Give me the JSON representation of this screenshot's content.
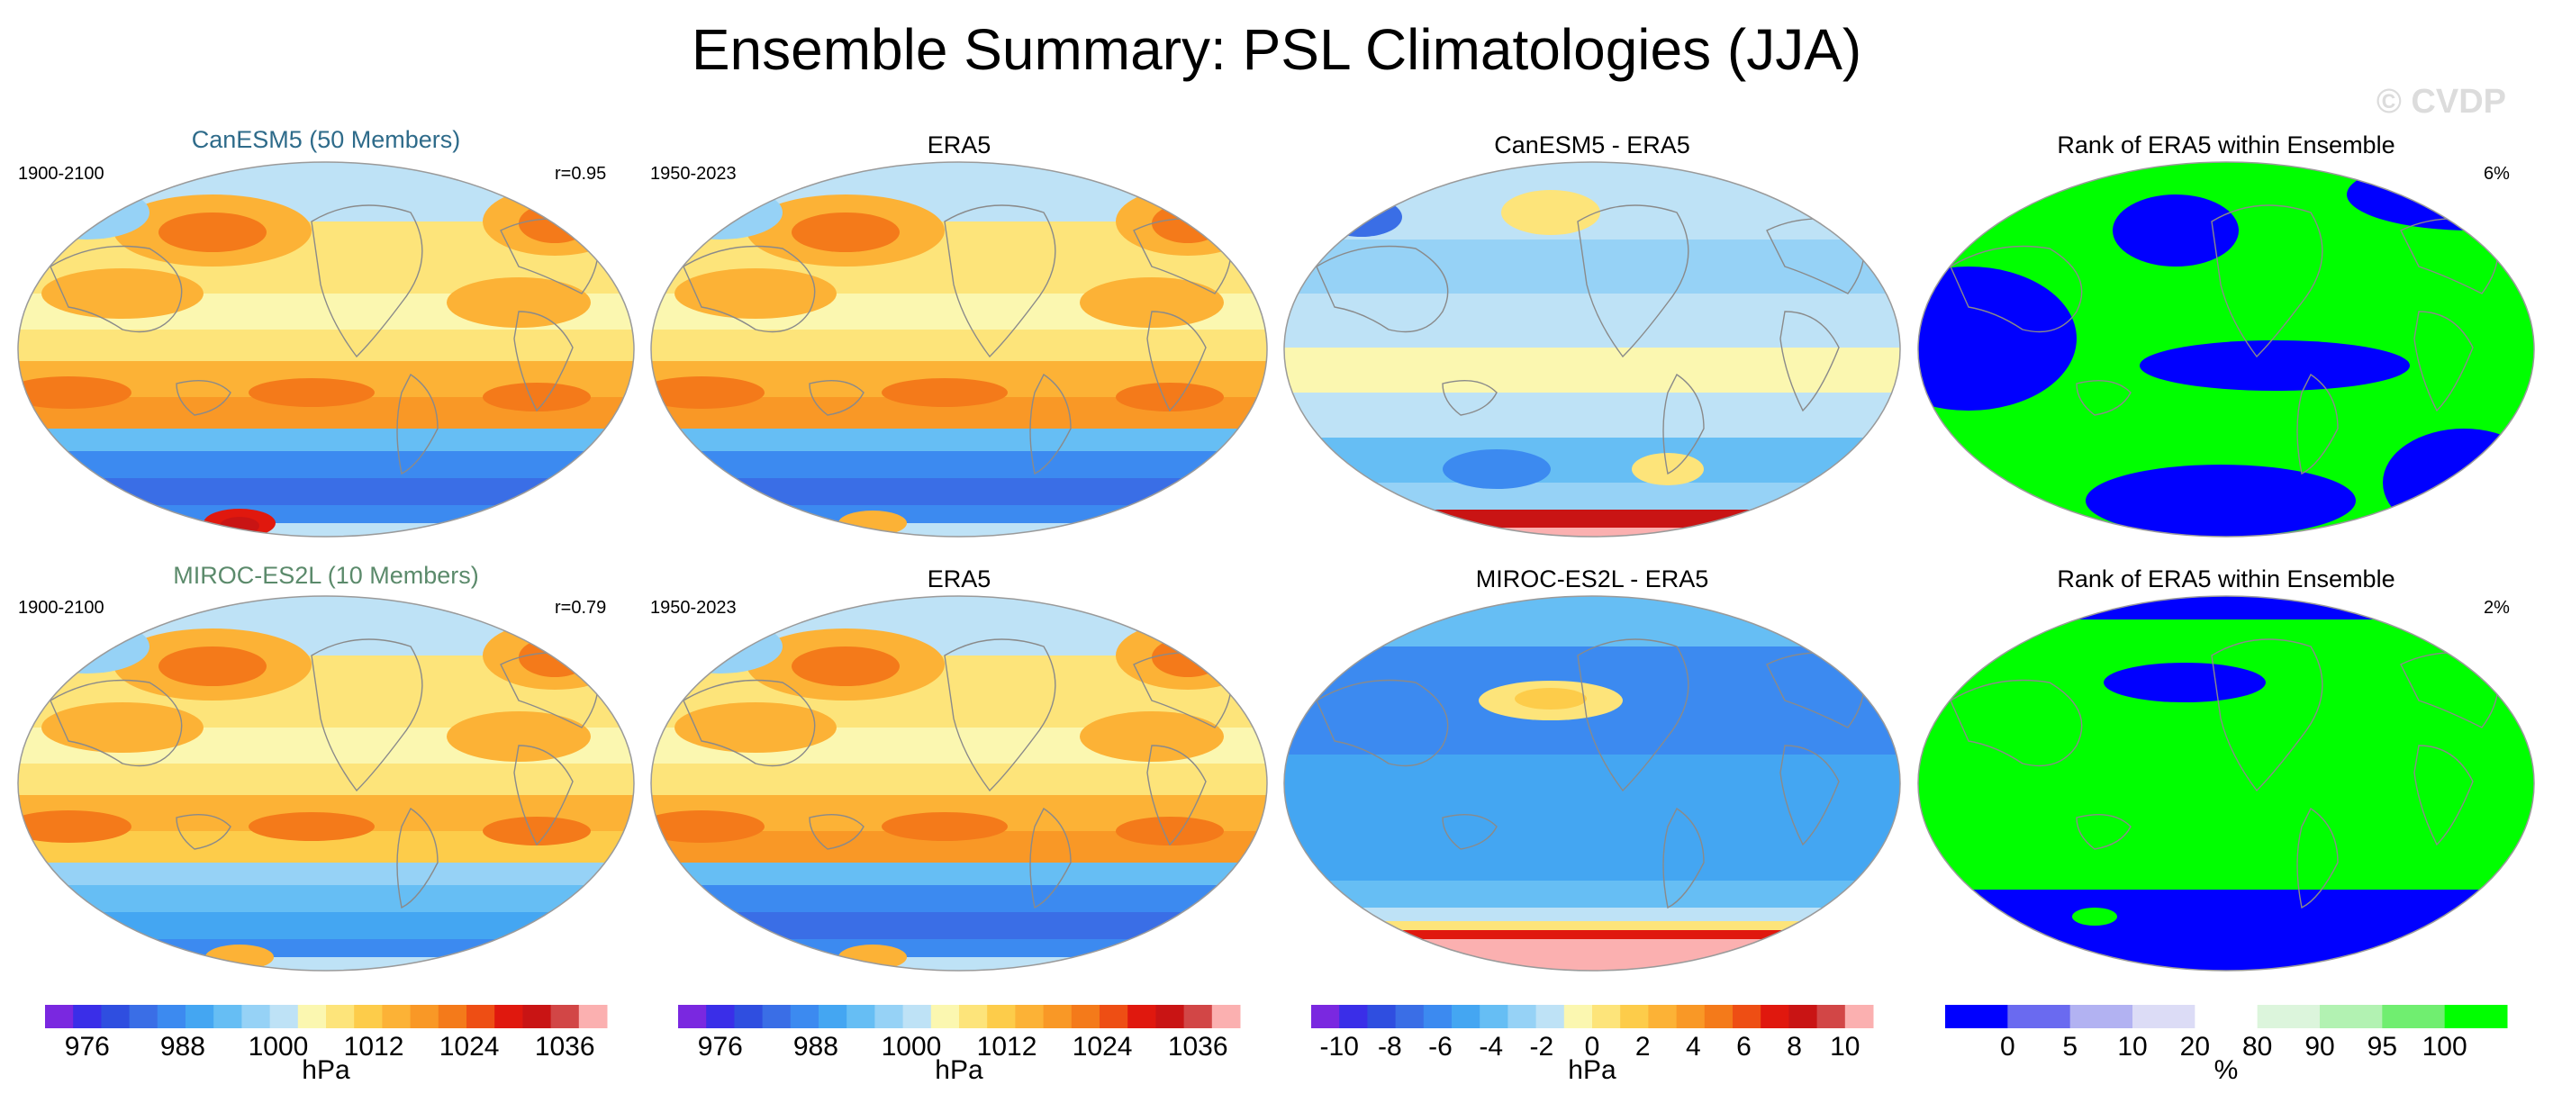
{
  "title": "Ensemble Summary: PSL Climatologies (JJA)",
  "watermark": "© CVDP",
  "rows": [
    {
      "panels": [
        {
          "kind": "model",
          "title": "CanESM5 (50 Members)",
          "title_color": "#2e6b8a",
          "left": "1900-2100",
          "right": "r=0.95"
        },
        {
          "kind": "obs",
          "title": "ERA5",
          "left": "1950-2023",
          "right": ""
        },
        {
          "kind": "diff",
          "title": "CanESM5 - ERA5",
          "left": "",
          "right": ""
        },
        {
          "kind": "rank",
          "title": "Rank of ERA5 within Ensemble",
          "left": "",
          "right": "6%"
        }
      ]
    },
    {
      "panels": [
        {
          "kind": "model2",
          "title": "MIROC-ES2L (10 Members)",
          "title_color": "#5b8a6b",
          "left": "1900-2100",
          "right": "r=0.79"
        },
        {
          "kind": "obs",
          "title": "ERA5",
          "left": "1950-2023",
          "right": ""
        },
        {
          "kind": "diff2",
          "title": "MIROC-ES2L - ERA5",
          "left": "",
          "right": ""
        },
        {
          "kind": "rank2",
          "title": "Rank of ERA5 within Ensemble",
          "left": "",
          "right": "2%"
        }
      ]
    }
  ],
  "colorbars": [
    {
      "name": "psl",
      "unit": "hPa",
      "labels": [
        "976",
        "988",
        "1000",
        "1012",
        "1024",
        "1036"
      ],
      "colors": [
        "#7a28e0",
        "#3a2ee8",
        "#2f4ee0",
        "#3a6ee6",
        "#3c8af0",
        "#44a6f2",
        "#66bef4",
        "#96d2f6",
        "#bee2f6",
        "#fbf7b0",
        "#fde47a",
        "#fdcc4a",
        "#fcb236",
        "#f99826",
        "#f47a1a",
        "#ee4e14",
        "#e0180e",
        "#c91414",
        "#d24646",
        "#fbb0b0"
      ]
    },
    {
      "name": "psl-obs",
      "unit": "hPa",
      "labels": [
        "976",
        "988",
        "1000",
        "1012",
        "1024",
        "1036"
      ],
      "colors": [
        "#7a28e0",
        "#3a2ee8",
        "#2f4ee0",
        "#3a6ee6",
        "#3c8af0",
        "#44a6f2",
        "#66bef4",
        "#96d2f6",
        "#bee2f6",
        "#fbf7b0",
        "#fde47a",
        "#fdcc4a",
        "#fcb236",
        "#f99826",
        "#f47a1a",
        "#ee4e14",
        "#e0180e",
        "#c91414",
        "#d24646",
        "#fbb0b0"
      ]
    },
    {
      "name": "diff",
      "unit": "hPa",
      "labels": [
        "-10",
        "-8",
        "-6",
        "-4",
        "-2",
        "0",
        "2",
        "4",
        "6",
        "8",
        "10"
      ],
      "colors": [
        "#7a28e0",
        "#3a2ee8",
        "#2f4ee0",
        "#3a6ee6",
        "#3c8af0",
        "#44a6f2",
        "#66bef4",
        "#96d2f6",
        "#bee2f6",
        "#fbf7b0",
        "#fde47a",
        "#fdcc4a",
        "#fcb236",
        "#f99826",
        "#f47a1a",
        "#ee4e14",
        "#e0180e",
        "#c91414",
        "#d24646",
        "#fbb0b0"
      ]
    },
    {
      "name": "rank",
      "unit": "%",
      "labels": [
        "0",
        "5",
        "10",
        "20",
        "80",
        "90",
        "95",
        "100"
      ],
      "colors": [
        "#0000ff",
        "#6a6af0",
        "#b2b2f2",
        "#dcdcf6",
        "#ffffff",
        "#dcf5dc",
        "#b2f2b2",
        "#70ee70",
        "#00ff00"
      ]
    }
  ],
  "colors": {
    "land_outline": "#8a8a8a",
    "map_border": "#9a9a9a",
    "rank_low": "#0000ff",
    "rank_high": "#00ff00"
  }
}
